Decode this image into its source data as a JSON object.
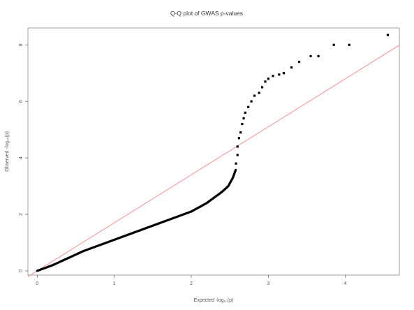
{
  "chart_data": {
    "type": "scatter",
    "title": "Q-Q plot of GWAS p-values",
    "xlabel": "Expected -log₁₀(p)",
    "ylabel": "Observed -log₁₀(p)",
    "xlim": [
      -0.12,
      4.7
    ],
    "ylim": [
      -0.15,
      8.6
    ],
    "xticks": [
      0,
      1,
      2,
      3,
      4
    ],
    "yticks": [
      0,
      2,
      4,
      6,
      8
    ],
    "grid": false,
    "reference_line": {
      "intercept": 0,
      "slope": 1.7,
      "color": "#f4a0a0"
    },
    "points_color": "#000000",
    "bulk_curve": [
      [
        0.0,
        0.0
      ],
      [
        0.2,
        0.2
      ],
      [
        0.4,
        0.45
      ],
      [
        0.6,
        0.7
      ],
      [
        0.8,
        0.9
      ],
      [
        1.0,
        1.1
      ],
      [
        1.2,
        1.3
      ],
      [
        1.4,
        1.5
      ],
      [
        1.6,
        1.7
      ],
      [
        1.8,
        1.9
      ],
      [
        2.0,
        2.1
      ],
      [
        2.1,
        2.25
      ],
      [
        2.2,
        2.4
      ],
      [
        2.3,
        2.6
      ],
      [
        2.4,
        2.8
      ],
      [
        2.48,
        3.0
      ],
      [
        2.54,
        3.3
      ],
      [
        2.58,
        3.6
      ]
    ],
    "tail_points": [
      [
        2.58,
        3.8
      ],
      [
        2.6,
        4.1
      ],
      [
        2.6,
        4.4
      ],
      [
        2.62,
        4.7
      ],
      [
        2.64,
        4.9
      ],
      [
        2.66,
        5.2
      ],
      [
        2.68,
        5.4
      ],
      [
        2.7,
        5.6
      ],
      [
        2.74,
        5.8
      ],
      [
        2.78,
        6.0
      ],
      [
        2.82,
        6.2
      ],
      [
        2.88,
        6.3
      ],
      [
        2.92,
        6.5
      ],
      [
        2.96,
        6.7
      ],
      [
        3.0,
        6.8
      ],
      [
        3.06,
        6.9
      ],
      [
        3.14,
        6.95
      ],
      [
        3.2,
        7.0
      ],
      [
        3.3,
        7.2
      ],
      [
        3.4,
        7.4
      ],
      [
        3.55,
        7.6
      ],
      [
        3.65,
        7.6
      ],
      [
        3.85,
        8.0
      ],
      [
        4.05,
        8.0
      ],
      [
        4.55,
        8.35
      ]
    ]
  }
}
